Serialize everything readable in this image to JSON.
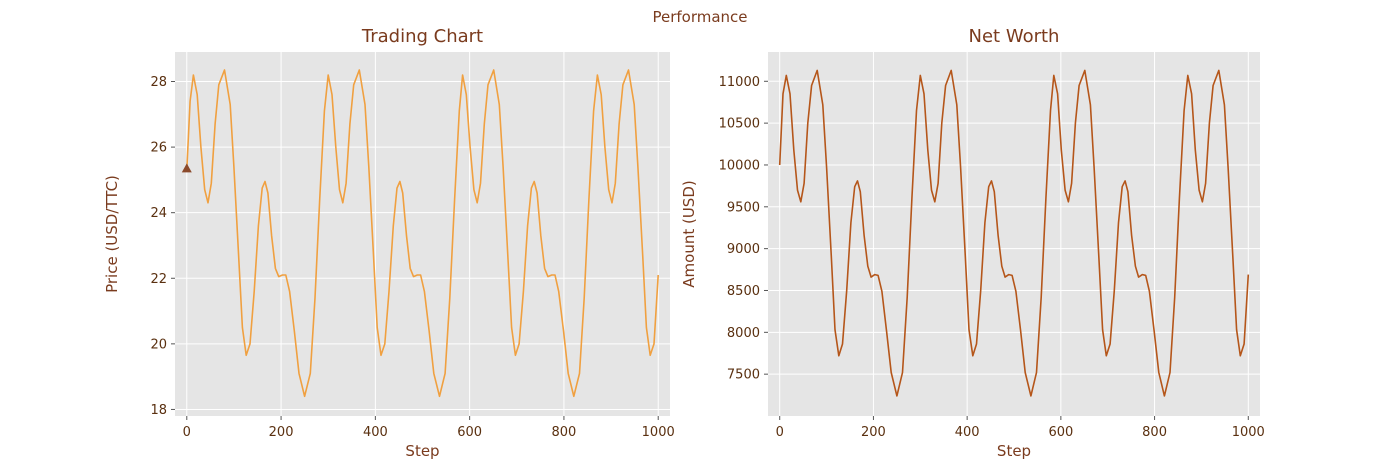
{
  "figure": {
    "title": "Performance"
  },
  "colors": {
    "panel_bg": "#e5e5e5",
    "grid": "#ffffff",
    "text": "#7a3b1e",
    "tick_text": "#5a3010",
    "price_line": "#f0a040",
    "networth_line": "#b5561a",
    "marker": "#8b4a2b"
  },
  "chart_data": [
    {
      "type": "line",
      "title": "Trading Chart",
      "xlabel": "Step",
      "ylabel": "Price (USD/TTC)",
      "xlim": [
        -25,
        1025
      ],
      "ylim": [
        17.8,
        28.9
      ],
      "xticks": [
        0,
        200,
        400,
        600,
        800,
        1000
      ],
      "yticks": [
        18,
        20,
        22,
        24,
        26,
        28
      ],
      "grid": true,
      "series": [
        {
          "points": [
            [
              0,
              25.3
            ],
            [
              7,
              27.4
            ],
            [
              14,
              28.2
            ],
            [
              22,
              27.6
            ],
            [
              30,
              26.0
            ],
            [
              38,
              24.7
            ],
            [
              45,
              24.3
            ],
            [
              52,
              24.9
            ],
            [
              60,
              26.7
            ],
            [
              68,
              27.9
            ],
            [
              80,
              28.35
            ],
            [
              92,
              27.3
            ],
            [
              100,
              25.4
            ],
            [
              110,
              22.7
            ],
            [
              118,
              20.5
            ],
            [
              126,
              19.65
            ],
            [
              134,
              20.0
            ],
            [
              143,
              21.6
            ],
            [
              152,
              23.6
            ],
            [
              160,
              24.75
            ],
            [
              166,
              24.95
            ],
            [
              172,
              24.6
            ],
            [
              180,
              23.3
            ],
            [
              188,
              22.3
            ],
            [
              195,
              22.05
            ],
            [
              203,
              22.1
            ],
            [
              210,
              22.1
            ],
            [
              218,
              21.6
            ],
            [
              228,
              20.4
            ],
            [
              238,
              19.1
            ],
            [
              250,
              18.4
            ],
            [
              262,
              19.1
            ],
            [
              272,
              21.4
            ],
            [
              282,
              24.4
            ],
            [
              292,
              27.1
            ],
            [
              300,
              28.2
            ],
            [
              308,
              27.6
            ],
            [
              316,
              26.0
            ],
            [
              324,
              24.7
            ],
            [
              331,
              24.3
            ],
            [
              338,
              24.9
            ],
            [
              346,
              26.7
            ],
            [
              354,
              27.9
            ],
            [
              366,
              28.35
            ],
            [
              378,
              27.3
            ],
            [
              386,
              25.4
            ],
            [
              396,
              22.7
            ],
            [
              404,
              20.5
            ],
            [
              412,
              19.65
            ],
            [
              420,
              20.0
            ],
            [
              429,
              21.6
            ],
            [
              438,
              23.6
            ],
            [
              446,
              24.75
            ],
            [
              452,
              24.95
            ],
            [
              458,
              24.6
            ],
            [
              466,
              23.3
            ],
            [
              474,
              22.3
            ],
            [
              481,
              22.05
            ],
            [
              489,
              22.1
            ],
            [
              496,
              22.1
            ],
            [
              504,
              21.6
            ],
            [
              514,
              20.4
            ],
            [
              524,
              19.1
            ],
            [
              536,
              18.4
            ],
            [
              548,
              19.1
            ],
            [
              558,
              21.4
            ],
            [
              568,
              24.4
            ],
            [
              578,
              27.1
            ],
            [
              585,
              28.2
            ],
            [
              593,
              27.6
            ],
            [
              601,
              26.0
            ],
            [
              609,
              24.7
            ],
            [
              616,
              24.3
            ],
            [
              623,
              24.9
            ],
            [
              631,
              26.7
            ],
            [
              639,
              27.9
            ],
            [
              651,
              28.35
            ],
            [
              663,
              27.3
            ],
            [
              671,
              25.4
            ],
            [
              681,
              22.7
            ],
            [
              689,
              20.5
            ],
            [
              697,
              19.65
            ],
            [
              705,
              20.0
            ],
            [
              714,
              21.6
            ],
            [
              723,
              23.6
            ],
            [
              731,
              24.75
            ],
            [
              737,
              24.95
            ],
            [
              743,
              24.6
            ],
            [
              751,
              23.3
            ],
            [
              759,
              22.3
            ],
            [
              766,
              22.05
            ],
            [
              774,
              22.1
            ],
            [
              781,
              22.1
            ],
            [
              789,
              21.6
            ],
            [
              799,
              20.4
            ],
            [
              809,
              19.1
            ],
            [
              821,
              18.4
            ],
            [
              833,
              19.1
            ],
            [
              843,
              21.4
            ],
            [
              853,
              24.4
            ],
            [
              863,
              27.1
            ],
            [
              871,
              28.2
            ],
            [
              879,
              27.6
            ],
            [
              887,
              26.0
            ],
            [
              895,
              24.7
            ],
            [
              902,
              24.3
            ],
            [
              909,
              24.9
            ],
            [
              917,
              26.7
            ],
            [
              925,
              27.9
            ],
            [
              937,
              28.35
            ],
            [
              949,
              27.3
            ],
            [
              957,
              25.4
            ],
            [
              967,
              22.7
            ],
            [
              975,
              20.5
            ],
            [
              983,
              19.65
            ],
            [
              991,
              20.0
            ],
            [
              1000,
              22.1
            ]
          ]
        }
      ],
      "markers": [
        {
          "x": 0,
          "y": 25.35,
          "shape": "triangle-up"
        }
      ]
    },
    {
      "type": "line",
      "title": "Net Worth",
      "xlabel": "Step",
      "ylabel": "Amount (USD)",
      "xlim": [
        -25,
        1025
      ],
      "ylim": [
        7000,
        11350
      ],
      "xticks": [
        0,
        200,
        400,
        600,
        800,
        1000
      ],
      "yticks": [
        7500,
        8000,
        8500,
        9000,
        9500,
        10000,
        10500,
        11000
      ],
      "grid": true,
      "series": [
        {
          "points": [
            [
              0,
              10000
            ],
            [
              7,
              10850
            ],
            [
              14,
              11070
            ],
            [
              22,
              10850
            ],
            [
              30,
              10180
            ],
            [
              38,
              9700
            ],
            [
              45,
              9560
            ],
            [
              52,
              9780
            ],
            [
              60,
              10500
            ],
            [
              68,
              10950
            ],
            [
              80,
              11130
            ],
            [
              92,
              10720
            ],
            [
              100,
              9970
            ],
            [
              110,
              8910
            ],
            [
              118,
              8030
            ],
            [
              126,
              7720
            ],
            [
              134,
              7860
            ],
            [
              143,
              8500
            ],
            [
              152,
              9310
            ],
            [
              160,
              9740
            ],
            [
              166,
              9810
            ],
            [
              172,
              9680
            ],
            [
              180,
              9160
            ],
            [
              188,
              8790
            ],
            [
              195,
              8660
            ],
            [
              203,
              8690
            ],
            [
              210,
              8680
            ],
            [
              218,
              8490
            ],
            [
              228,
              8020
            ],
            [
              238,
              7520
            ],
            [
              250,
              7240
            ],
            [
              262,
              7520
            ],
            [
              272,
              8420
            ],
            [
              282,
              9600
            ],
            [
              292,
              10650
            ],
            [
              300,
              11070
            ],
            [
              308,
              10850
            ],
            [
              316,
              10180
            ],
            [
              324,
              9700
            ],
            [
              331,
              9560
            ],
            [
              338,
              9780
            ],
            [
              346,
              10500
            ],
            [
              354,
              10950
            ],
            [
              366,
              11130
            ],
            [
              378,
              10720
            ],
            [
              386,
              9970
            ],
            [
              396,
              8910
            ],
            [
              404,
              8030
            ],
            [
              412,
              7720
            ],
            [
              420,
              7860
            ],
            [
              429,
              8500
            ],
            [
              438,
              9310
            ],
            [
              446,
              9740
            ],
            [
              452,
              9810
            ],
            [
              458,
              9680
            ],
            [
              466,
              9160
            ],
            [
              474,
              8790
            ],
            [
              481,
              8660
            ],
            [
              489,
              8690
            ],
            [
              496,
              8680
            ],
            [
              504,
              8490
            ],
            [
              514,
              8020
            ],
            [
              524,
              7520
            ],
            [
              536,
              7240
            ],
            [
              548,
              7520
            ],
            [
              558,
              8420
            ],
            [
              568,
              9600
            ],
            [
              578,
              10650
            ],
            [
              585,
              11070
            ],
            [
              593,
              10850
            ],
            [
              601,
              10180
            ],
            [
              609,
              9700
            ],
            [
              616,
              9560
            ],
            [
              623,
              9780
            ],
            [
              631,
              10500
            ],
            [
              639,
              10950
            ],
            [
              651,
              11130
            ],
            [
              663,
              10720
            ],
            [
              671,
              9970
            ],
            [
              681,
              8910
            ],
            [
              689,
              8030
            ],
            [
              697,
              7720
            ],
            [
              705,
              7860
            ],
            [
              714,
              8500
            ],
            [
              723,
              9310
            ],
            [
              731,
              9740
            ],
            [
              737,
              9810
            ],
            [
              743,
              9680
            ],
            [
              751,
              9160
            ],
            [
              759,
              8790
            ],
            [
              766,
              8660
            ],
            [
              774,
              8690
            ],
            [
              781,
              8680
            ],
            [
              789,
              8490
            ],
            [
              799,
              8020
            ],
            [
              809,
              7520
            ],
            [
              821,
              7240
            ],
            [
              833,
              7520
            ],
            [
              843,
              8420
            ],
            [
              853,
              9600
            ],
            [
              863,
              10650
            ],
            [
              871,
              11070
            ],
            [
              879,
              10850
            ],
            [
              887,
              10180
            ],
            [
              895,
              9700
            ],
            [
              902,
              9560
            ],
            [
              909,
              9780
            ],
            [
              917,
              10500
            ],
            [
              925,
              10950
            ],
            [
              937,
              11130
            ],
            [
              949,
              10720
            ],
            [
              957,
              9970
            ],
            [
              967,
              8910
            ],
            [
              975,
              8030
            ],
            [
              983,
              7720
            ],
            [
              991,
              7860
            ],
            [
              1000,
              8690
            ]
          ]
        }
      ]
    }
  ]
}
